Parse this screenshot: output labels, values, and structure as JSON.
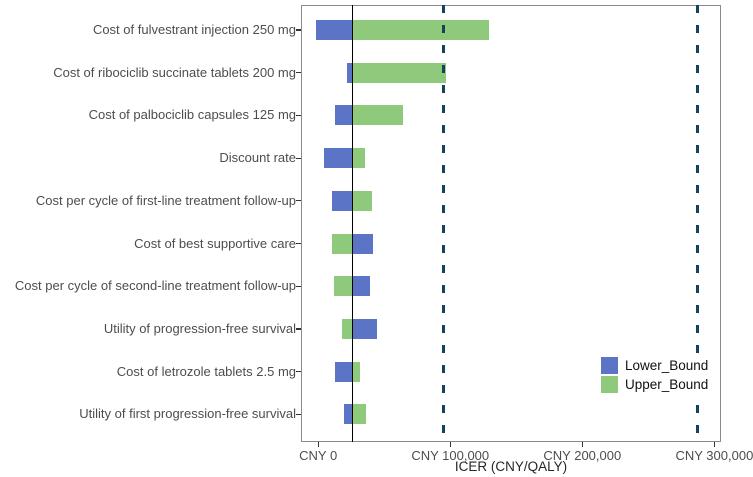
{
  "chart_data": {
    "type": "bar",
    "variant": "tornado-diagram",
    "orientation": "horizontal",
    "title": "",
    "xlabel": "ICER (CNY/QALY)",
    "ylabel": "",
    "xlim": [
      -13000,
      305000
    ],
    "grid": false,
    "x_ticks": [
      {
        "value": 0,
        "label": "CNY 0"
      },
      {
        "value": 100000,
        "label": "CNY 100,000"
      },
      {
        "value": 200000,
        "label": "CNY 200,000"
      },
      {
        "value": 300000,
        "label": "CNY 300,000"
      }
    ],
    "baseline_icer": 26000,
    "threshold_lines": [
      95000,
      287000
    ],
    "legend": {
      "position": "inside-bottom-right",
      "entries": [
        {
          "name": "Lower_Bound",
          "color": "#5b74c6"
        },
        {
          "name": "Upper_Bound",
          "color": "#8fca7c"
        }
      ]
    },
    "rows": [
      {
        "label": "Cost of fulvestrant injection 250 mg",
        "lower_icer": -1500,
        "upper_icer": 129000
      },
      {
        "label": "Cost of ribociclib succinate tablets 200 mg",
        "lower_icer": 21700,
        "upper_icer": 96700
      },
      {
        "label": "Cost of palbociclib capsules 125 mg",
        "lower_icer": 12900,
        "upper_icer": 64600
      },
      {
        "label": "Discount rate",
        "lower_icer": 4500,
        "upper_icer": 35800
      },
      {
        "label": "Cost per cycle of first-line treatment follow-up",
        "lower_icer": 10400,
        "upper_icer": 40700
      },
      {
        "label": "Cost of best supportive care",
        "lower_icer": 41400,
        "upper_icer": 10400
      },
      {
        "label": "Cost per cycle of second-line treatment follow-up",
        "lower_icer": 39400,
        "upper_icer": 12300
      },
      {
        "label": "Utility of progression-free survival",
        "lower_icer": 44900,
        "upper_icer": 18000
      },
      {
        "label": "Cost of letrozole tablets 2.5 mg",
        "lower_icer": 12500,
        "upper_icer": 31500
      },
      {
        "label": "Utility of first progression-free survival",
        "lower_icer": 19500,
        "upper_icer": 36500
      }
    ],
    "colors": {
      "lower_bound": "#5b74c6",
      "upper_bound": "#8fca7c",
      "baseline_line": "#000000",
      "threshold_line": "#15425f",
      "panel_border": "#8a8a8a",
      "tick_text": "#4d4d4d",
      "axis_title_text": "#262626"
    }
  }
}
